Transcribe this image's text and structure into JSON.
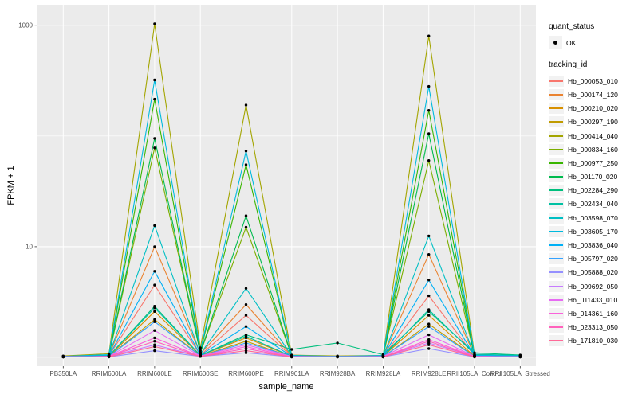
{
  "figure": {
    "background": "#FFFFFF",
    "panel_background": "#EBEBEB",
    "grid_color": "#FFFFFF",
    "axis_text_color": "#4D4D4D",
    "tick_mark_color": "#333333",
    "point_color": "#000000"
  },
  "legend": {
    "quant_title": "quant_status",
    "quant_items": [
      {
        "label": "OK"
      }
    ],
    "tracking_title": "tracking_id"
  },
  "chart_data": {
    "type": "line",
    "title": "",
    "xlabel": "sample_name",
    "ylabel": "FPKM + 1",
    "y_scale": "log10",
    "ylim": [
      0.95,
      1250
    ],
    "y_gridlines_major": [
      10,
      1000
    ],
    "y_gridlines_minor": [
      1,
      100
    ],
    "y_tick_labels": [
      {
        "value": 1000,
        "label": "1000"
      },
      {
        "value": 10,
        "label": "10"
      }
    ],
    "grid": true,
    "legend_position": "right",
    "point_marker": "black dot (quant_status OK)",
    "categories": [
      "PB350LA",
      "RRIM600LA",
      "RRIM600LE",
      "RRIM600SE",
      "RRIM600PE",
      "RRIM901LA",
      "RRIM928BA",
      "RRIM928LA",
      "RRIM928LE",
      "RRII105LA_Control",
      "RRII105LA_Stressed"
    ],
    "series": [
      {
        "name": "Hb_000053_010",
        "color": "#F8766D",
        "values": [
          1.02,
          1.03,
          4.5,
          1.05,
          2.4,
          1.02,
          1.02,
          1.02,
          3.6,
          1.03,
          1.02
        ]
      },
      {
        "name": "Hb_000174_120",
        "color": "#EA8331",
        "values": [
          1.02,
          1.04,
          10,
          1.08,
          3.0,
          1.03,
          1.02,
          1.02,
          8.5,
          1.04,
          1.02
        ]
      },
      {
        "name": "Hb_000210_020",
        "color": "#D89000",
        "values": [
          1.01,
          1.02,
          2.6,
          1.04,
          1.5,
          1.02,
          1.01,
          1.02,
          2.4,
          1.02,
          1.02
        ]
      },
      {
        "name": "Hb_000297_190",
        "color": "#C09B00",
        "values": [
          1.01,
          1.02,
          2.2,
          1.03,
          1.4,
          1.01,
          1.01,
          1.01,
          2.0,
          1.02,
          1.01
        ]
      },
      {
        "name": "Hb_000414_040",
        "color": "#A3A500",
        "values": [
          1.03,
          1.08,
          1030,
          1.22,
          190,
          1.05,
          1.03,
          1.04,
          800,
          1.06,
          1.04
        ]
      },
      {
        "name": "Hb_000834_160",
        "color": "#7CAE00",
        "values": [
          1.02,
          1.04,
          78,
          1.1,
          15,
          1.03,
          1.02,
          1.03,
          60,
          1.03,
          1.02
        ]
      },
      {
        "name": "Hb_000977_250",
        "color": "#39B600",
        "values": [
          1.02,
          1.05,
          215,
          1.12,
          55,
          1.04,
          1.02,
          1.03,
          170,
          1.04,
          1.03
        ]
      },
      {
        "name": "Hb_001170_020",
        "color": "#00BB4E",
        "values": [
          1.02,
          1.05,
          95,
          1.1,
          19,
          1.03,
          1.02,
          1.03,
          105,
          1.03,
          1.02
        ]
      },
      {
        "name": "Hb_002284_290",
        "color": "#00BF7D",
        "values": [
          1.02,
          1.03,
          2.9,
          1.04,
          1.6,
          1.18,
          1.35,
          1.06,
          2.6,
          1.1,
          1.05
        ]
      },
      {
        "name": "Hb_002434_040",
        "color": "#00C1A3",
        "values": [
          1.01,
          1.03,
          2.8,
          1.04,
          1.55,
          1.02,
          1.02,
          1.02,
          2.7,
          1.07,
          1.04
        ]
      },
      {
        "name": "Hb_003598_070",
        "color": "#00BFC4",
        "values": [
          1.02,
          1.04,
          15.5,
          1.07,
          4.2,
          1.03,
          1.02,
          1.02,
          12.5,
          1.04,
          1.03
        ]
      },
      {
        "name": "Hb_003605_170",
        "color": "#00BADE",
        "values": [
          1.02,
          1.06,
          320,
          1.15,
          73,
          1.04,
          1.02,
          1.04,
          280,
          1.05,
          1.03
        ]
      },
      {
        "name": "Hb_003836_040",
        "color": "#00B0F6",
        "values": [
          1.02,
          1.03,
          6.0,
          1.05,
          1.9,
          1.02,
          1.02,
          1.02,
          5.0,
          1.03,
          1.02
        ]
      },
      {
        "name": "Hb_005797_020",
        "color": "#35A2FF",
        "values": [
          1.01,
          1.02,
          2.1,
          1.03,
          1.35,
          1.02,
          1.01,
          1.02,
          1.9,
          1.02,
          1.02
        ]
      },
      {
        "name": "Hb_005888_020",
        "color": "#9590FF",
        "values": [
          1.01,
          1.01,
          1.15,
          1.02,
          1.1,
          1.01,
          1.01,
          1.01,
          1.2,
          1.01,
          1.01
        ]
      },
      {
        "name": "Hb_009692_050",
        "color": "#C77CFF",
        "values": [
          1.01,
          1.02,
          1.3,
          1.02,
          1.2,
          1.01,
          1.01,
          1.01,
          1.35,
          1.02,
          1.01
        ]
      },
      {
        "name": "Hb_011433_010",
        "color": "#E76BF3",
        "values": [
          1.01,
          1.02,
          1.75,
          1.03,
          1.3,
          1.02,
          1.01,
          1.02,
          1.6,
          1.02,
          1.01
        ]
      },
      {
        "name": "Hb_014361_160",
        "color": "#FA62DB",
        "values": [
          1.01,
          1.02,
          1.5,
          1.02,
          1.25,
          1.01,
          1.01,
          1.01,
          1.45,
          1.02,
          1.01
        ]
      },
      {
        "name": "Hb_023313_050",
        "color": "#FF62BC",
        "values": [
          1.01,
          1.02,
          1.4,
          1.02,
          1.2,
          1.01,
          1.01,
          1.01,
          1.4,
          1.01,
          1.01
        ]
      },
      {
        "name": "Hb_171810_030",
        "color": "#FF6A98",
        "values": [
          1.01,
          1.01,
          1.25,
          1.02,
          1.15,
          1.01,
          1.01,
          1.01,
          1.3,
          1.01,
          1.01
        ]
      }
    ]
  }
}
